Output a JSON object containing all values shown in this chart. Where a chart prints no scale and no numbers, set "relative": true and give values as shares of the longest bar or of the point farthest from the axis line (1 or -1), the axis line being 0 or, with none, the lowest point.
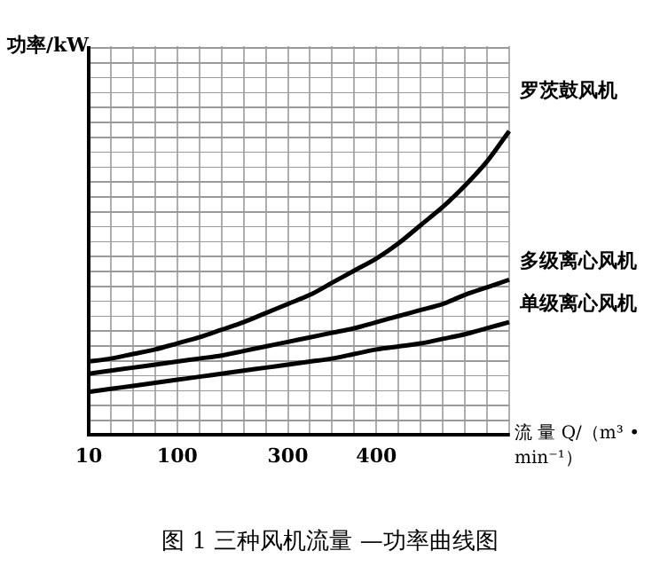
{
  "chart_data": {
    "type": "line",
    "title": "图 1    三种风机流量 —功率曲线图",
    "xlabel": "流 量 Q/（m³ • min⁻¹）",
    "ylabel": "功率/kW",
    "relative": true,
    "grid": true,
    "legend": false,
    "marker": "none",
    "line_style": "solid",
    "categories": [
      "10",
      null,
      null,
      null,
      "100",
      null,
      null,
      null,
      null,
      "300",
      null,
      null,
      null,
      "400",
      null,
      null,
      null,
      null,
      null,
      null
    ],
    "series": [
      {
        "name": "罗茨鼓风机",
        "color": "#000000",
        "values": [
          0.24,
          0.25,
          0.265,
          0.28,
          0.3,
          0.32,
          0.345,
          0.37,
          0.4,
          0.43,
          0.46,
          0.5,
          0.54,
          0.58,
          0.63,
          0.69,
          0.75,
          0.82,
          0.9,
          1.0
        ]
      },
      {
        "name": "多级离心风机",
        "color": "#000000",
        "values": [
          0.2,
          0.21,
          0.22,
          0.23,
          0.24,
          0.25,
          0.26,
          0.275,
          0.29,
          0.305,
          0.32,
          0.335,
          0.35,
          0.37,
          0.39,
          0.41,
          0.43,
          0.46,
          0.485,
          0.51
        ]
      },
      {
        "name": "单级离心风机",
        "color": "#000000",
        "values": [
          0.14,
          0.15,
          0.16,
          0.17,
          0.18,
          0.19,
          0.2,
          0.21,
          0.22,
          0.23,
          0.24,
          0.25,
          0.265,
          0.28,
          0.29,
          0.3,
          0.315,
          0.33,
          0.35,
          0.37
        ]
      }
    ]
  }
}
